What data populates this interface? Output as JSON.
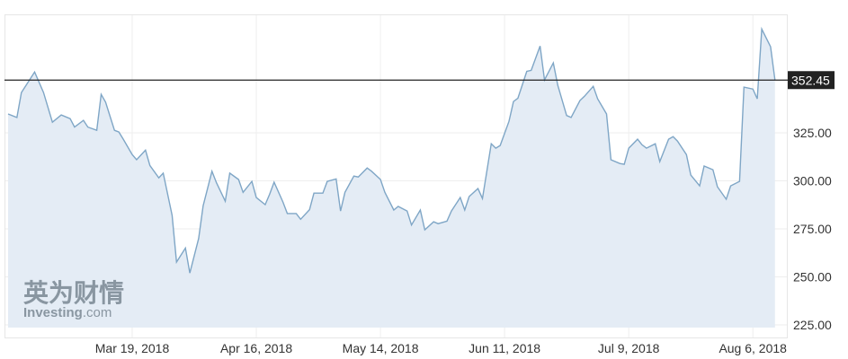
{
  "chart_data": {
    "type": "area",
    "title": "",
    "xlabel": "",
    "ylabel": "",
    "ylim": [
      215,
      385
    ],
    "xlim": [
      "2018-02-18",
      "2018-08-12"
    ],
    "grid": true,
    "legend": "none",
    "x_ticks": [
      "2018-03-19",
      "2018-04-16",
      "2018-05-14",
      "2018-06-11",
      "2018-07-09",
      "2018-08-06"
    ],
    "x_tick_labels": [
      "Mar 19, 2018",
      "Apr 16, 2018",
      "May 14, 2018",
      "Jun 11, 2018",
      "Jul 9, 2018",
      "Aug 6, 2018"
    ],
    "y_ticks": [
      225,
      250,
      275,
      300,
      325
    ],
    "y_tick_labels": [
      "225.00",
      "250.00",
      "275.00",
      "300.00",
      "325.00"
    ],
    "current_price": 352.45,
    "current_price_label": "352.45",
    "colors": {
      "line": "#7fa6c6",
      "fill": "#e4ecf5",
      "price_line": "#222222",
      "price_box": "#222222",
      "grid": "#eeeeee"
    },
    "series": [
      {
        "x": [
          "2018-02-19",
          "2018-02-21",
          "2018-02-22",
          "2018-02-25",
          "2018-02-27",
          "2018-03-01",
          "2018-03-03",
          "2018-03-05",
          "2018-03-06",
          "2018-03-08",
          "2018-03-09",
          "2018-03-11",
          "2018-03-12",
          "2018-03-13",
          "2018-03-15",
          "2018-03-16",
          "2018-03-17",
          "2018-03-19",
          "2018-03-20",
          "2018-03-22",
          "2018-03-23",
          "2018-03-25",
          "2018-03-26",
          "2018-03-28",
          "2018-03-29",
          "2018-03-31",
          "2018-04-01",
          "2018-04-03",
          "2018-04-04",
          "2018-04-06",
          "2018-04-07",
          "2018-04-09",
          "2018-04-10",
          "2018-04-12",
          "2018-04-13",
          "2018-04-15",
          "2018-04-16",
          "2018-04-18",
          "2018-04-19",
          "2018-04-20",
          "2018-04-22",
          "2018-04-23",
          "2018-04-25",
          "2018-04-26",
          "2018-04-28",
          "2018-04-29",
          "2018-05-01",
          "2018-05-02",
          "2018-05-04",
          "2018-05-05",
          "2018-05-06",
          "2018-05-08",
          "2018-05-09",
          "2018-05-11",
          "2018-05-12",
          "2018-05-14",
          "2018-05-15",
          "2018-05-17",
          "2018-05-18",
          "2018-05-20",
          "2018-05-21",
          "2018-05-23",
          "2018-05-24",
          "2018-05-26",
          "2018-05-27",
          "2018-05-29",
          "2018-05-30",
          "2018-06-01",
          "2018-06-02",
          "2018-06-03",
          "2018-06-05",
          "2018-06-06",
          "2018-06-08",
          "2018-06-09",
          "2018-06-10",
          "2018-06-12",
          "2018-06-13",
          "2018-06-14",
          "2018-06-16",
          "2018-06-17",
          "2018-06-19",
          "2018-06-20",
          "2018-06-22",
          "2018-06-23",
          "2018-06-25",
          "2018-06-26",
          "2018-06-28",
          "2018-06-29",
          "2018-07-01",
          "2018-07-02",
          "2018-07-04",
          "2018-07-05",
          "2018-07-07",
          "2018-07-08",
          "2018-07-09",
          "2018-07-11",
          "2018-07-12",
          "2018-07-13",
          "2018-07-15",
          "2018-07-16",
          "2018-07-18",
          "2018-07-19",
          "2018-07-20",
          "2018-07-22",
          "2018-07-23",
          "2018-07-25",
          "2018-07-26",
          "2018-07-28",
          "2018-07-29",
          "2018-07-31",
          "2018-08-01",
          "2018-08-03",
          "2018-08-04",
          "2018-08-06",
          "2018-08-07",
          "2018-08-08",
          "2018-08-10",
          "2018-08-11"
        ],
        "values": [
          334.8,
          333,
          346,
          356.7,
          346,
          330.5,
          334.3,
          332.4,
          328,
          331.5,
          328,
          326.3,
          345,
          341,
          326.3,
          325.4,
          321.7,
          313.7,
          311,
          316,
          308,
          301.6,
          304,
          282,
          257.7,
          265,
          252,
          270,
          287,
          305,
          299,
          289.4,
          304,
          300.7,
          294,
          299.7,
          291.3,
          287.6,
          293,
          299.3,
          289,
          283,
          283,
          280,
          285,
          293.6,
          293.6,
          299.7,
          301,
          284.3,
          294,
          302.5,
          302,
          306.7,
          305,
          300.7,
          294,
          284.8,
          286.7,
          284.3,
          277,
          284.8,
          274.5,
          278.7,
          277.7,
          279,
          284.3,
          291.3,
          284.8,
          291.8,
          296,
          290.8,
          319.3,
          317,
          318.4,
          331,
          341.3,
          343,
          357,
          357.5,
          370.2,
          352.5,
          361.4,
          349.7,
          334,
          333,
          341.8,
          344,
          349.2,
          342.7,
          334.8,
          311,
          309,
          308.6,
          317,
          321.7,
          318.8,
          317,
          319.3,
          310,
          321.7,
          323,
          320.7,
          313.7,
          303,
          297.4,
          307.7,
          305.8,
          296.9,
          290.4,
          297.4,
          299.7,
          348.8,
          347.8,
          342.7,
          379,
          369.8,
          352.45
        ]
      }
    ]
  },
  "watermark": {
    "cn": "英为财情",
    "en": "Investing",
    "en_suffix": ".com"
  }
}
